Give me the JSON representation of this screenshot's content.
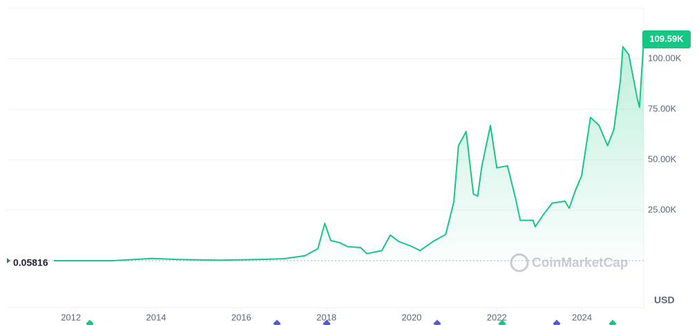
{
  "chart_data": {
    "type": "line",
    "x": [
      2011.6,
      2013.0,
      2013.9,
      2014.5,
      2015.5,
      2016.5,
      2017.0,
      2017.5,
      2017.8,
      2017.96,
      2018.1,
      2018.3,
      2018.5,
      2018.8,
      2018.95,
      2019.3,
      2019.5,
      2019.7,
      2019.99,
      2020.2,
      2020.5,
      2020.8,
      2020.99,
      2021.1,
      2021.28,
      2021.45,
      2021.55,
      2021.65,
      2021.85,
      2022.0,
      2022.25,
      2022.45,
      2022.55,
      2022.85,
      2022.9,
      2023.1,
      2023.3,
      2023.6,
      2023.7,
      2023.85,
      2023.99,
      2024.2,
      2024.4,
      2024.6,
      2024.75,
      2024.9,
      2024.96,
      2025.1,
      2025.3,
      2025.35,
      2025.45
    ],
    "values": [
      0.05816,
      13,
      1100,
      600,
      250,
      650,
      1000,
      2500,
      6000,
      18500,
      10000,
      9000,
      7000,
      6500,
      3500,
      5000,
      12700,
      9500,
      7200,
      5000,
      9500,
      13000,
      29000,
      57000,
      64000,
      33000,
      32000,
      47000,
      67000,
      46000,
      47000,
      30000,
      20000,
      20000,
      16800,
      23000,
      28500,
      29500,
      26000,
      35000,
      42000,
      71000,
      67000,
      57000,
      65000,
      89000,
      106000,
      102000,
      80000,
      76000,
      109590
    ],
    "value_labels": [
      null,
      null,
      null,
      null,
      null,
      null,
      null,
      null,
      null,
      null,
      null,
      null,
      null,
      null,
      null,
      null,
      null,
      null,
      null,
      null,
      null,
      null,
      null,
      null,
      null,
      null,
      null,
      null,
      null,
      null,
      null,
      null,
      null,
      null,
      null,
      null,
      null,
      null,
      null,
      null,
      null,
      null,
      null,
      null,
      null,
      null,
      null,
      null,
      null,
      null,
      "109.59K"
    ],
    "color": "#16c784",
    "xlim": [
      2011.6,
      2025.45
    ],
    "xticks": [
      2012,
      2014,
      2016,
      2018,
      2020,
      2022,
      2024
    ],
    "ylim": [
      0,
      125000
    ],
    "yticks": [
      {
        "value": 25000,
        "label": "25.00K"
      },
      {
        "value": 50000,
        "label": "50.00K"
      },
      {
        "value": 75000,
        "label": "75.00K"
      },
      {
        "value": 100000,
        "label": "100.00K"
      }
    ],
    "grid": true,
    "currency": "USD",
    "watermark": "CoinMarketCap"
  }
}
